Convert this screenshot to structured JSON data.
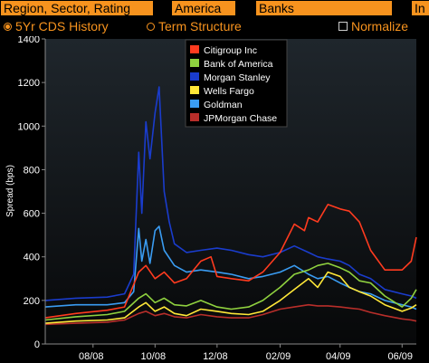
{
  "toolbar": {
    "region_field": "Region, Sector, Rating",
    "america_field": "America",
    "banks_field": "Banks",
    "extra_field": "In",
    "history_option": "5Yr CDS History",
    "term_option": "Term Structure",
    "normalize_option": "Normalize",
    "accent_color": "#f7931e"
  },
  "chart_data": {
    "type": "line",
    "title": "",
    "xlabel": "",
    "ylabel": "Spread (bps)",
    "ylim": [
      0,
      1400
    ],
    "yticks": [
      0,
      200,
      400,
      600,
      800,
      1000,
      1200,
      1400
    ],
    "xlim": [
      "2008-06-15",
      "2009-06-15"
    ],
    "xticks": [
      "08/08",
      "10/08",
      "12/08",
      "02/09",
      "04/09",
      "06/09"
    ],
    "grid": false,
    "legend_position": "top-right",
    "series": [
      {
        "name": "Citigroup Inc",
        "color": "#ff3b1f",
        "x": [
          "2008-06-15",
          "2008-07-15",
          "2008-08-15",
          "2008-09-01",
          "2008-09-15",
          "2008-09-22",
          "2008-10-01",
          "2008-10-10",
          "2008-10-20",
          "2008-11-01",
          "2008-11-15",
          "2008-11-25",
          "2008-12-01",
          "2008-12-15",
          "2009-01-01",
          "2009-01-15",
          "2009-02-01",
          "2009-02-15",
          "2009-02-25",
          "2009-03-01",
          "2009-03-10",
          "2009-03-20",
          "2009-04-01",
          "2009-04-10",
          "2009-04-20",
          "2009-05-01",
          "2009-05-15",
          "2009-06-01",
          "2009-06-10",
          "2009-06-15"
        ],
        "values": [
          120,
          140,
          155,
          170,
          330,
          360,
          300,
          330,
          280,
          300,
          380,
          400,
          310,
          300,
          290,
          330,
          420,
          550,
          520,
          580,
          560,
          640,
          620,
          610,
          560,
          430,
          340,
          340,
          380,
          490
        ]
      },
      {
        "name": "Bank of America",
        "color": "#8fd13f",
        "x": [
          "2008-06-15",
          "2008-07-15",
          "2008-08-15",
          "2008-09-01",
          "2008-09-15",
          "2008-09-22",
          "2008-10-01",
          "2008-10-10",
          "2008-10-20",
          "2008-11-01",
          "2008-11-15",
          "2008-12-01",
          "2008-12-15",
          "2009-01-01",
          "2009-01-15",
          "2009-02-01",
          "2009-02-15",
          "2009-03-01",
          "2009-03-10",
          "2009-03-20",
          "2009-04-01",
          "2009-04-10",
          "2009-04-20",
          "2009-05-01",
          "2009-05-15",
          "2009-06-01",
          "2009-06-10",
          "2009-06-15"
        ],
        "values": [
          110,
          125,
          135,
          150,
          210,
          230,
          190,
          210,
          180,
          175,
          200,
          170,
          160,
          170,
          200,
          260,
          320,
          340,
          360,
          370,
          350,
          330,
          290,
          280,
          220,
          170,
          210,
          250
        ]
      },
      {
        "name": "Morgan Stanley",
        "color": "#1a3ccc",
        "x": [
          "2008-06-15",
          "2008-07-15",
          "2008-08-15",
          "2008-09-01",
          "2008-09-10",
          "2008-09-15",
          "2008-09-18",
          "2008-09-22",
          "2008-09-26",
          "2008-10-01",
          "2008-10-05",
          "2008-10-10",
          "2008-10-15",
          "2008-10-20",
          "2008-11-01",
          "2008-11-15",
          "2008-12-01",
          "2008-12-15",
          "2009-01-01",
          "2009-01-15",
          "2009-02-01",
          "2009-02-15",
          "2009-03-01",
          "2009-03-10",
          "2009-03-20",
          "2009-04-01",
          "2009-04-10",
          "2009-04-20",
          "2009-05-01",
          "2009-05-15",
          "2009-06-01",
          "2009-06-10",
          "2009-06-15"
        ],
        "values": [
          200,
          210,
          215,
          230,
          320,
          880,
          600,
          1020,
          850,
          1060,
          1180,
          700,
          560,
          460,
          420,
          430,
          440,
          430,
          410,
          400,
          420,
          450,
          420,
          400,
          390,
          380,
          360,
          320,
          300,
          250,
          230,
          220,
          210
        ]
      },
      {
        "name": "Wells Fargo",
        "color": "#ffe838",
        "x": [
          "2008-06-15",
          "2008-07-15",
          "2008-08-15",
          "2008-09-01",
          "2008-09-15",
          "2008-09-22",
          "2008-10-01",
          "2008-10-10",
          "2008-10-20",
          "2008-11-01",
          "2008-11-15",
          "2008-12-01",
          "2008-12-15",
          "2009-01-01",
          "2009-01-15",
          "2009-02-01",
          "2009-02-15",
          "2009-03-01",
          "2009-03-10",
          "2009-03-20",
          "2009-04-01",
          "2009-04-10",
          "2009-04-20",
          "2009-05-01",
          "2009-05-15",
          "2009-06-01",
          "2009-06-10",
          "2009-06-15"
        ],
        "values": [
          95,
          105,
          110,
          120,
          170,
          190,
          150,
          170,
          140,
          130,
          160,
          150,
          140,
          135,
          150,
          200,
          250,
          300,
          260,
          330,
          310,
          260,
          240,
          220,
          180,
          150,
          165,
          180
        ]
      },
      {
        "name": "Goldman",
        "color": "#3a9cf2",
        "x": [
          "2008-06-15",
          "2008-07-15",
          "2008-08-15",
          "2008-09-01",
          "2008-09-10",
          "2008-09-15",
          "2008-09-18",
          "2008-09-22",
          "2008-09-26",
          "2008-10-01",
          "2008-10-05",
          "2008-10-10",
          "2008-10-20",
          "2008-11-01",
          "2008-11-15",
          "2008-12-01",
          "2008-12-15",
          "2009-01-01",
          "2009-01-15",
          "2009-02-01",
          "2009-02-15",
          "2009-03-01",
          "2009-03-10",
          "2009-03-20",
          "2009-04-01",
          "2009-04-10",
          "2009-04-20",
          "2009-05-01",
          "2009-05-15",
          "2009-06-01",
          "2009-06-10",
          "2009-06-15"
        ],
        "values": [
          170,
          180,
          180,
          190,
          240,
          530,
          380,
          480,
          370,
          520,
          540,
          430,
          360,
          330,
          340,
          330,
          320,
          300,
          310,
          330,
          360,
          320,
          300,
          310,
          280,
          260,
          240,
          230,
          200,
          180,
          170,
          160
        ]
      },
      {
        "name": "JPMorgan Chase",
        "color": "#b82e2a",
        "x": [
          "2008-06-15",
          "2008-07-15",
          "2008-08-15",
          "2008-09-01",
          "2008-09-15",
          "2008-09-22",
          "2008-10-01",
          "2008-10-10",
          "2008-10-20",
          "2008-11-01",
          "2008-11-15",
          "2008-12-01",
          "2008-12-15",
          "2009-01-01",
          "2009-01-15",
          "2009-02-01",
          "2009-02-15",
          "2009-03-01",
          "2009-03-10",
          "2009-03-20",
          "2009-04-01",
          "2009-04-10",
          "2009-04-20",
          "2009-05-01",
          "2009-05-15",
          "2009-06-01",
          "2009-06-10",
          "2009-06-15"
        ],
        "values": [
          90,
          95,
          100,
          110,
          140,
          150,
          130,
          140,
          125,
          120,
          135,
          125,
          120,
          120,
          135,
          160,
          170,
          180,
          175,
          175,
          170,
          165,
          160,
          145,
          130,
          115,
          110,
          105
        ]
      }
    ]
  }
}
